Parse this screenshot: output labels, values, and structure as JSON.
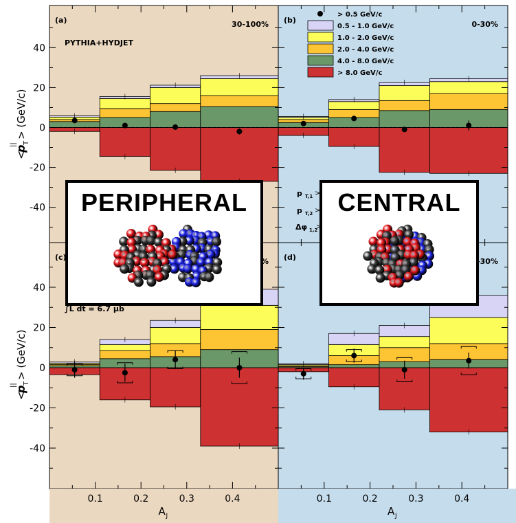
{
  "chart_data": {
    "type": "bar",
    "xlabel": "A",
    "xlabel_sub": "J",
    "ylabel": "<p> (GeV/c)",
    "ylabel_sub": "T",
    "ylabel_sup": "||",
    "xlim": [
      0,
      0.5
    ],
    "ylim": [
      -58,
      60
    ],
    "x_ticks": [
      0.1,
      0.2,
      0.3,
      0.4
    ],
    "y_ticks": [
      -40,
      -20,
      0,
      20,
      40
    ],
    "bin_edges": [
      0,
      0.11,
      0.22,
      0.33,
      0.5
    ],
    "series_order": [
      "0.5 - 1.0 GeV/c",
      "1.0 - 2.0 GeV/c",
      "2.0 - 4.0 GeV/c",
      "4.0 - 8.0 GeV/c",
      "> 8.0 GeV/c"
    ],
    "legend": {
      "position": "top-right",
      "entries": [
        {
          "name": "> 0.5 GeV/c",
          "marker": "dot"
        },
        {
          "name": "0.5 - 1.0 GeV/c",
          "color": "#d8d4f6"
        },
        {
          "name": "1.0 - 2.0 GeV/c",
          "color": "#fdfd5a"
        },
        {
          "name": "2.0 - 4.0 GeV/c",
          "color": "#fdc434"
        },
        {
          "name": "4.0 - 8.0 GeV/c",
          "color": "#6b9868"
        },
        {
          "name": "> 8.0 GeV/c",
          "color": "#cd3131"
        }
      ]
    },
    "panels": [
      {
        "id": "a",
        "tag": "(a)",
        "centrality": "30-100%",
        "bg": "#ebd8c0",
        "note": "PYTHIA+HYDJET",
        "stacks": [
          {
            "pos": [
              {
                "v": 3,
                "c": "#6b9868"
              },
              {
                "v": 1,
                "c": "#fdc434"
              },
              {
                "v": 1.2,
                "c": "#fdfd5a"
              },
              {
                "v": 0.6,
                "c": "#d8d4f6"
              }
            ],
            "neg": [
              {
                "v": -2,
                "c": "#cd3131"
              }
            ]
          },
          {
            "pos": [
              {
                "v": 5,
                "c": "#6b9868"
              },
              {
                "v": 4.5,
                "c": "#fdc434"
              },
              {
                "v": 5,
                "c": "#fdfd5a"
              },
              {
                "v": 1,
                "c": "#d8d4f6"
              }
            ],
            "neg": [
              {
                "v": -14.5,
                "c": "#cd3131"
              }
            ]
          },
          {
            "pos": [
              {
                "v": 8,
                "c": "#6b9868"
              },
              {
                "v": 4,
                "c": "#fdc434"
              },
              {
                "v": 8,
                "c": "#fdfd5a"
              },
              {
                "v": 1.2,
                "c": "#d8d4f6"
              }
            ],
            "neg": [
              {
                "v": -21.5,
                "c": "#cd3131"
              }
            ]
          },
          {
            "pos": [
              {
                "v": 10.5,
                "c": "#6b9868"
              },
              {
                "v": 5.5,
                "c": "#fdc434"
              },
              {
                "v": 8.5,
                "c": "#fdfd5a"
              },
              {
                "v": 1.5,
                "c": "#d8d4f6"
              }
            ],
            "neg": [
              {
                "v": -27,
                "c": "#cd3131"
              }
            ]
          }
        ],
        "points": [
          {
            "x": 0.055,
            "y": 3.5,
            "err": 0,
            "sys": 0
          },
          {
            "x": 0.165,
            "y": 1.0,
            "err": 0,
            "sys": 0
          },
          {
            "x": 0.275,
            "y": 0.2,
            "err": 0,
            "sys": 0
          },
          {
            "x": 0.415,
            "y": -2.0,
            "err": 1.5,
            "sys": 0
          }
        ]
      },
      {
        "id": "b",
        "tag": "(b)",
        "centrality": "0-30%",
        "bg": "#c5dcec",
        "note": "",
        "stacks": [
          {
            "pos": [
              {
                "v": 2.5,
                "c": "#6b9868"
              },
              {
                "v": 1.5,
                "c": "#fdc434"
              },
              {
                "v": 1,
                "c": "#fdfd5a"
              },
              {
                "v": 0.5,
                "c": "#d8d4f6"
              }
            ],
            "neg": [
              {
                "v": -4,
                "c": "#cd3131"
              }
            ]
          },
          {
            "pos": [
              {
                "v": 5,
                "c": "#6b9868"
              },
              {
                "v": 4,
                "c": "#fdc434"
              },
              {
                "v": 4,
                "c": "#fdfd5a"
              },
              {
                "v": 1,
                "c": "#d8d4f6"
              }
            ],
            "neg": [
              {
                "v": -9.5,
                "c": "#cd3131"
              }
            ]
          },
          {
            "pos": [
              {
                "v": 8.5,
                "c": "#6b9868"
              },
              {
                "v": 5,
                "c": "#fdc434"
              },
              {
                "v": 7.5,
                "c": "#fdfd5a"
              },
              {
                "v": 1.5,
                "c": "#d8d4f6"
              }
            ],
            "neg": [
              {
                "v": -22.5,
                "c": "#cd3131"
              }
            ]
          },
          {
            "pos": [
              {
                "v": 9,
                "c": "#6b9868"
              },
              {
                "v": 8,
                "c": "#fdc434"
              },
              {
                "v": 6,
                "c": "#fdfd5a"
              },
              {
                "v": 1.5,
                "c": "#d8d4f6"
              }
            ],
            "neg": [
              {
                "v": -23,
                "c": "#cd3131"
              }
            ]
          }
        ],
        "points": [
          {
            "x": 0.055,
            "y": 2.0,
            "err": 0,
            "sys": 0
          },
          {
            "x": 0.165,
            "y": 4.5,
            "err": 0,
            "sys": 0
          },
          {
            "x": 0.275,
            "y": -1.0,
            "err": 0,
            "sys": 0
          },
          {
            "x": 0.415,
            "y": 1.0,
            "err": 2.5,
            "sys": 0
          }
        ]
      },
      {
        "id": "c",
        "tag": "(c)",
        "centrality": "30-100%",
        "bg": "#ebd8c0",
        "note": "∫L dt = 6.7 μb",
        "stacks": [
          {
            "pos": [
              {
                "v": 1,
                "c": "#6b9868"
              },
              {
                "v": 0.6,
                "c": "#fdc434"
              },
              {
                "v": 0.6,
                "c": "#fdfd5a"
              },
              {
                "v": 0.6,
                "c": "#d8d4f6"
              }
            ],
            "neg": [
              {
                "v": -3.5,
                "c": "#cd3131"
              }
            ]
          },
          {
            "pos": [
              {
                "v": 4.5,
                "c": "#6b9868"
              },
              {
                "v": 4,
                "c": "#fdc434"
              },
              {
                "v": 3,
                "c": "#fdfd5a"
              },
              {
                "v": 2.5,
                "c": "#d8d4f6"
              }
            ],
            "neg": [
              {
                "v": -16,
                "c": "#cd3131"
              }
            ]
          },
          {
            "pos": [
              {
                "v": 5.5,
                "c": "#6b9868"
              },
              {
                "v": 6.5,
                "c": "#fdc434"
              },
              {
                "v": 8,
                "c": "#fdfd5a"
              },
              {
                "v": 3.5,
                "c": "#d8d4f6"
              }
            ],
            "neg": [
              {
                "v": -19.5,
                "c": "#cd3131"
              }
            ]
          },
          {
            "pos": [
              {
                "v": 9,
                "c": "#6b9868"
              },
              {
                "v": 10,
                "c": "#fdc434"
              },
              {
                "v": 12,
                "c": "#fdfd5a"
              },
              {
                "v": 8,
                "c": "#d8d4f6"
              }
            ],
            "neg": [
              {
                "v": -39,
                "c": "#cd3131"
              }
            ]
          }
        ],
        "points": [
          {
            "x": 0.055,
            "y": -1.0,
            "err": 4,
            "sys": 3
          },
          {
            "x": 0.165,
            "y": -2.5,
            "err": 4.5,
            "sys": 5
          },
          {
            "x": 0.275,
            "y": 4.0,
            "err": 4.5,
            "sys": 4.5
          },
          {
            "x": 0.415,
            "y": 0.0,
            "err": 5,
            "sys": 8
          }
        ]
      },
      {
        "id": "d",
        "tag": "(d)",
        "centrality": "0-30%",
        "bg": "#c5dcec",
        "note": "",
        "stacks": [
          {
            "pos": [
              {
                "v": 0.5,
                "c": "#6b9868"
              },
              {
                "v": 0.5,
                "c": "#fdc434"
              },
              {
                "v": 0.5,
                "c": "#fdfd5a"
              },
              {
                "v": 0.5,
                "c": "#d8d4f6"
              }
            ],
            "neg": [
              {
                "v": -2,
                "c": "#cd3131"
              }
            ]
          },
          {
            "pos": [
              {
                "v": 1.5,
                "c": "#6b9868"
              },
              {
                "v": 4.5,
                "c": "#fdc434"
              },
              {
                "v": 5.5,
                "c": "#fdfd5a"
              },
              {
                "v": 5.5,
                "c": "#d8d4f6"
              }
            ],
            "neg": [
              {
                "v": -9.5,
                "c": "#cd3131"
              }
            ]
          },
          {
            "pos": [
              {
                "v": 3,
                "c": "#6b9868"
              },
              {
                "v": 7,
                "c": "#fdc434"
              },
              {
                "v": 5.5,
                "c": "#fdfd5a"
              },
              {
                "v": 5.5,
                "c": "#d8d4f6"
              }
            ],
            "neg": [
              {
                "v": -21,
                "c": "#cd3131"
              }
            ]
          },
          {
            "pos": [
              {
                "v": 4,
                "c": "#6b9868"
              },
              {
                "v": 8,
                "c": "#fdc434"
              },
              {
                "v": 13,
                "c": "#fdfd5a"
              },
              {
                "v": 11,
                "c": "#d8d4f6"
              }
            ],
            "neg": [
              {
                "v": -32,
                "c": "#cd3131"
              }
            ]
          }
        ],
        "points": [
          {
            "x": 0.055,
            "y": -3.0,
            "err": 3,
            "sys": 2.5
          },
          {
            "x": 0.165,
            "y": 6.0,
            "err": 3.5,
            "sys": 3
          },
          {
            "x": 0.275,
            "y": -1.0,
            "err": 4.5,
            "sys": 6
          },
          {
            "x": 0.415,
            "y": 3.5,
            "err": 4,
            "sys": 7
          }
        ]
      }
    ],
    "cut_labels": [
      "p",
      "p",
      "Δφ"
    ]
  },
  "overlays": {
    "peripheral": {
      "label": "PERIPHERAL"
    },
    "central": {
      "label": "CENTRAL"
    }
  },
  "nucleus_colors": {
    "red": "#e8191e",
    "blue": "#1e24e8",
    "gray": "#3a3a3a"
  }
}
